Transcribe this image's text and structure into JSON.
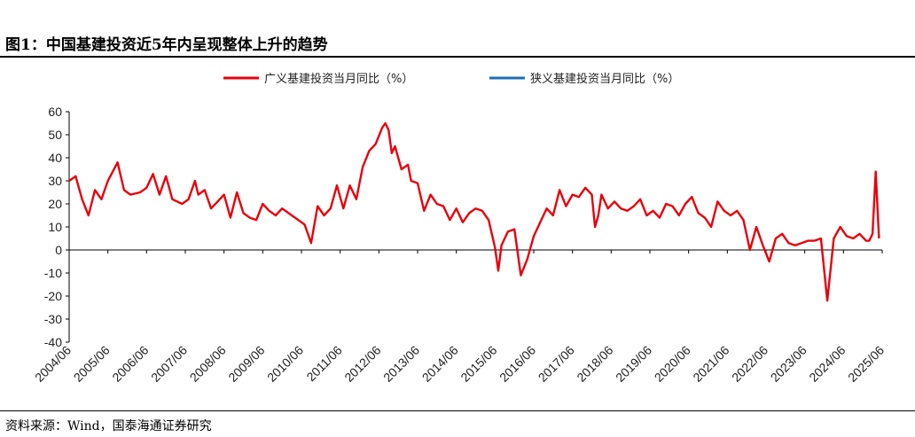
{
  "figure": {
    "title": "图1：中国基建投资近5年内呈现整体上升的趋势",
    "source": "资料来源：Wind，国泰海通证券研究"
  },
  "chart_data": {
    "type": "line",
    "ylim": [
      -40,
      60
    ],
    "yticks": [
      60,
      50,
      40,
      30,
      20,
      10,
      0,
      -10,
      -20,
      -30,
      -40
    ],
    "x_range": [
      "2004-06",
      "2025-06"
    ],
    "xticks": [
      "2004/06",
      "2005/06",
      "2006/06",
      "2007/06",
      "2008/06",
      "2009/06",
      "2010/06",
      "2011/06",
      "2012/06",
      "2013/06",
      "2014/06",
      "2015/06",
      "2016/06",
      "2017/06",
      "2018/06",
      "2019/06",
      "2020/06",
      "2021/06",
      "2022/06",
      "2023/06",
      "2024/06",
      "2025/06"
    ],
    "legend_position": "top",
    "grid": false,
    "series": [
      {
        "name": "广义基建投资当月同比（%）",
        "color": "#e8000b",
        "points": [
          [
            "2004-06",
            30
          ],
          [
            "2004-08",
            32
          ],
          [
            "2004-10",
            22
          ],
          [
            "2004-12",
            15
          ],
          [
            "2005-02",
            26
          ],
          [
            "2005-04",
            22
          ],
          [
            "2005-06",
            30
          ],
          [
            "2005-09",
            38
          ],
          [
            "2005-11",
            26
          ],
          [
            "2006-01",
            24
          ],
          [
            "2006-04",
            25
          ],
          [
            "2006-06",
            27
          ],
          [
            "2006-08",
            33
          ],
          [
            "2006-10",
            24
          ],
          [
            "2006-12",
            32
          ],
          [
            "2007-02",
            22
          ],
          [
            "2007-05",
            20
          ],
          [
            "2007-07",
            22
          ],
          [
            "2007-09",
            30
          ],
          [
            "2007-10",
            24
          ],
          [
            "2007-12",
            26
          ],
          [
            "2008-02",
            18
          ],
          [
            "2008-04",
            21
          ],
          [
            "2008-06",
            24
          ],
          [
            "2008-08",
            14
          ],
          [
            "2008-10",
            25
          ],
          [
            "2008-12",
            16
          ],
          [
            "2009-02",
            14
          ],
          [
            "2009-04",
            13
          ],
          [
            "2009-06",
            20
          ],
          [
            "2009-08",
            17
          ],
          [
            "2009-10",
            15
          ],
          [
            "2009-12",
            18
          ],
          [
            "2010-03",
            15
          ],
          [
            "2010-05",
            13
          ],
          [
            "2010-07",
            11
          ],
          [
            "2010-09",
            3
          ],
          [
            "2010-11",
            19
          ],
          [
            "2011-01",
            15
          ],
          [
            "2011-03",
            18
          ],
          [
            "2011-05",
            28
          ],
          [
            "2011-07",
            18
          ],
          [
            "2011-09",
            28
          ],
          [
            "2011-11",
            22
          ],
          [
            "2012-01",
            36
          ],
          [
            "2012-03",
            43
          ],
          [
            "2012-05",
            46
          ],
          [
            "2012-07",
            53
          ],
          [
            "2012-08",
            55
          ],
          [
            "2012-09",
            52
          ],
          [
            "2012-10",
            42
          ],
          [
            "2012-11",
            45
          ],
          [
            "2013-01",
            35
          ],
          [
            "2013-03",
            37
          ],
          [
            "2013-04",
            30
          ],
          [
            "2013-06",
            29
          ],
          [
            "2013-08",
            17
          ],
          [
            "2013-10",
            24
          ],
          [
            "2013-12",
            20
          ],
          [
            "2014-02",
            19
          ],
          [
            "2014-04",
            13
          ],
          [
            "2014-06",
            18
          ],
          [
            "2014-08",
            12
          ],
          [
            "2014-10",
            16
          ],
          [
            "2014-12",
            18
          ],
          [
            "2015-02",
            17
          ],
          [
            "2015-04",
            13
          ],
          [
            "2015-06",
            1
          ],
          [
            "2015-07",
            -9
          ],
          [
            "2015-08",
            2
          ],
          [
            "2015-10",
            8
          ],
          [
            "2015-12",
            9
          ],
          [
            "2016-02",
            -11
          ],
          [
            "2016-04",
            -4
          ],
          [
            "2016-06",
            6
          ],
          [
            "2016-08",
            12
          ],
          [
            "2016-10",
            18
          ],
          [
            "2016-12",
            15
          ],
          [
            "2017-02",
            26
          ],
          [
            "2017-04",
            19
          ],
          [
            "2017-06",
            24
          ],
          [
            "2017-08",
            23
          ],
          [
            "2017-10",
            27
          ],
          [
            "2017-12",
            24
          ],
          [
            "2018-01",
            10
          ],
          [
            "2018-02",
            15
          ],
          [
            "2018-03",
            24
          ],
          [
            "2018-05",
            18
          ],
          [
            "2018-07",
            21
          ],
          [
            "2018-09",
            18
          ],
          [
            "2018-11",
            17
          ],
          [
            "2019-01",
            19
          ],
          [
            "2019-03",
            22
          ],
          [
            "2019-05",
            15
          ],
          [
            "2019-07",
            17
          ],
          [
            "2019-09",
            14
          ],
          [
            "2019-11",
            20
          ],
          [
            "2020-01",
            19
          ],
          [
            "2020-03",
            15
          ],
          [
            "2020-05",
            20
          ],
          [
            "2020-07",
            23
          ],
          [
            "2020-09",
            16
          ],
          [
            "2020-11",
            14
          ],
          [
            "2021-01",
            10
          ],
          [
            "2021-03",
            21
          ],
          [
            "2021-05",
            17
          ],
          [
            "2021-07",
            15
          ],
          [
            "2021-09",
            17
          ],
          [
            "2021-11",
            13
          ],
          [
            "2022-01",
            0
          ],
          [
            "2022-03",
            10
          ],
          [
            "2022-05",
            2
          ],
          [
            "2022-07",
            -5
          ],
          [
            "2022-09",
            5
          ],
          [
            "2022-11",
            7
          ],
          [
            "2023-01",
            3
          ],
          [
            "2023-03",
            2
          ],
          [
            "2023-05",
            3
          ],
          [
            "2023-07",
            4
          ],
          [
            "2023-09",
            4
          ],
          [
            "2023-11",
            5
          ],
          [
            "2024-01",
            -22
          ],
          [
            "2024-03",
            5
          ],
          [
            "2024-05",
            10
          ],
          [
            "2024-07",
            6
          ],
          [
            "2024-09",
            5
          ],
          [
            "2024-11",
            7
          ],
          [
            "2025-01",
            4
          ],
          [
            "2025-02",
            4
          ],
          [
            "2025-03",
            7
          ],
          [
            "2025-04",
            34
          ],
          [
            "2025-05",
            5
          ]
        ]
      },
      {
        "name": "狭义基建投资当月同比（%）",
        "color": "#1f6fb5",
        "points": []
      }
    ]
  }
}
